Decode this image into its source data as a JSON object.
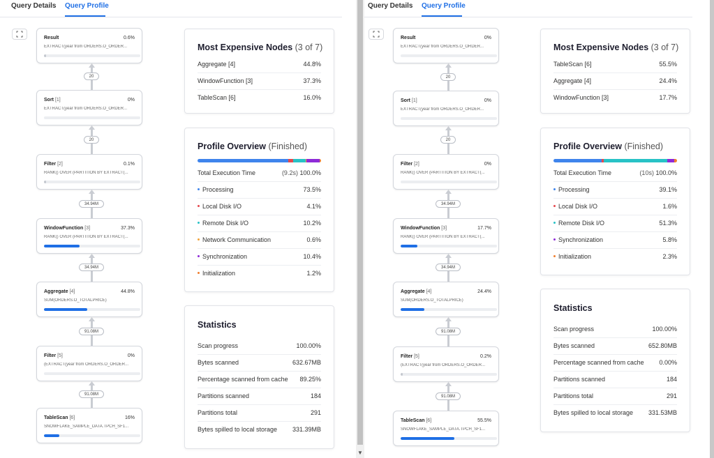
{
  "left": {
    "tabs": [
      "Query Details",
      "Query Profile"
    ],
    "nodes": [
      {
        "name": "Result",
        "id": "",
        "percent": "0.6%",
        "expr": "EXTRACT(year from ORDERS.O_ORDER...",
        "fill": 0.006
      },
      {
        "name": "Sort",
        "id": "[1]",
        "percent": "0%",
        "expr": "EXTRACT(year from ORDERS.O_ORDER...",
        "fill": 0
      },
      {
        "name": "Filter",
        "id": "[2]",
        "percent": "0.1%",
        "expr": "RANK() OVER (PARTITION BY EXTRACT(...",
        "fill": 0.001
      },
      {
        "name": "WindowFunction",
        "id": "[3]",
        "percent": "37.3%",
        "expr": "RANK() OVER (PARTITION BY EXTRACT(...",
        "fill": 0.373
      },
      {
        "name": "Aggregate",
        "id": "[4]",
        "percent": "44.8%",
        "expr": "SUM(ORDERS.O_TOTALPRICE)",
        "fill": 0.448
      },
      {
        "name": "Filter",
        "id": "[5]",
        "percent": "0%",
        "expr": "(EXTRACT(year from ORDERS.O_ORDER...",
        "fill": 0
      },
      {
        "name": "TableScan",
        "id": "[6]",
        "percent": "16%",
        "expr": "SNOWFLAKE_SAMPLE_DATA.TPCH_SF1...",
        "fill": 0.16
      }
    ],
    "edges": [
      "20",
      "20",
      "34.94M",
      "34.94M",
      "91.08M",
      "91.08M"
    ],
    "expensive": {
      "title": "Most Expensive Nodes",
      "count": "(3 of 7)",
      "rows": [
        [
          "Aggregate [4]",
          "44.8%"
        ],
        [
          "WindowFunction [3]",
          "37.3%"
        ],
        [
          "TableScan [6]",
          "16.0%"
        ]
      ]
    },
    "overview": {
      "title": "Profile Overview",
      "status": "(Finished)",
      "total_label": "Total Execution Time",
      "total_time": "(9.2s)",
      "total_pct": "100.0%",
      "rows": [
        {
          "label": "Processing",
          "value": "73.5%",
          "color": "#3f84ec"
        },
        {
          "label": "Local Disk I/O",
          "value": "4.1%",
          "color": "#e5484d"
        },
        {
          "label": "Remote Disk I/O",
          "value": "10.2%",
          "color": "#28c2c6"
        },
        {
          "label": "Network Communication",
          "value": "0.6%",
          "color": "#f2a33a"
        },
        {
          "label": "Synchronization",
          "value": "10.4%",
          "color": "#8e2bd8"
        },
        {
          "label": "Initialization",
          "value": "1.2%",
          "color": "#f07f2f"
        }
      ],
      "bar": [
        0.735,
        0.041,
        0.102,
        0.006,
        0.104,
        0.012
      ]
    },
    "stats": {
      "title": "Statistics",
      "rows": [
        [
          "Scan progress",
          "100.00%"
        ],
        [
          "Bytes scanned",
          "632.67MB"
        ],
        [
          "Percentage scanned from cache",
          "89.25%"
        ],
        [
          "Partitions scanned",
          "184"
        ],
        [
          "Partitions total",
          "291"
        ],
        [
          "Bytes spilled to local storage",
          "331.39MB"
        ]
      ]
    }
  },
  "right": {
    "tabs": [
      "Query Details",
      "Query Profile"
    ],
    "nodes": [
      {
        "name": "Result",
        "id": "",
        "percent": "0%",
        "expr": "EXTRACT(year from ORDERS.O_ORDER...",
        "fill": 0
      },
      {
        "name": "Sort",
        "id": "[1]",
        "percent": "0%",
        "expr": "EXTRACT(year from ORDERS.O_ORDER...",
        "fill": 0
      },
      {
        "name": "Filter",
        "id": "[2]",
        "percent": "0%",
        "expr": "RANK() OVER (PARTITION BY EXTRACT(...",
        "fill": 0
      },
      {
        "name": "WindowFunction",
        "id": "[3]",
        "percent": "17.7%",
        "expr": "RANK() OVER (PARTITION BY EXTRACT(...",
        "fill": 0.177
      },
      {
        "name": "Aggregate",
        "id": "[4]",
        "percent": "24.4%",
        "expr": "SUM(ORDERS.O_TOTALPRICE)",
        "fill": 0.244
      },
      {
        "name": "Filter",
        "id": "[5]",
        "percent": "0.2%",
        "expr": "(EXTRACT(year from ORDERS.O_ORDER...",
        "fill": 0.002
      },
      {
        "name": "TableScan",
        "id": "[6]",
        "percent": "55.5%",
        "expr": "SNOWFLAKE_SAMPLE_DATA.TPCH_SF1...",
        "fill": 0.555
      }
    ],
    "edges": [
      "20",
      "20",
      "34.94M",
      "34.94M",
      "91.08M",
      "91.08M"
    ],
    "expensive": {
      "title": "Most Expensive Nodes",
      "count": "(3 of 7)",
      "rows": [
        [
          "TableScan [6]",
          "55.5%"
        ],
        [
          "Aggregate [4]",
          "24.4%"
        ],
        [
          "WindowFunction [3]",
          "17.7%"
        ]
      ]
    },
    "overview": {
      "title": "Profile Overview",
      "status": "(Finished)",
      "total_label": "Total Execution Time",
      "total_time": "(10s)",
      "total_pct": "100.0%",
      "rows": [
        {
          "label": "Processing",
          "value": "39.1%",
          "color": "#3f84ec"
        },
        {
          "label": "Local Disk I/O",
          "value": "1.6%",
          "color": "#e5484d"
        },
        {
          "label": "Remote Disk I/O",
          "value": "51.3%",
          "color": "#28c2c6"
        },
        {
          "label": "Synchronization",
          "value": "5.8%",
          "color": "#8e2bd8"
        },
        {
          "label": "Initialization",
          "value": "2.3%",
          "color": "#f07f2f"
        }
      ],
      "bar": [
        0.391,
        0.016,
        0.513,
        0.058,
        0.023
      ]
    },
    "stats": {
      "title": "Statistics",
      "rows": [
        [
          "Scan progress",
          "100.00%"
        ],
        [
          "Bytes scanned",
          "652.80MB"
        ],
        [
          "Percentage scanned from cache",
          "0.00%"
        ],
        [
          "Partitions scanned",
          "184"
        ],
        [
          "Partitions total",
          "291"
        ],
        [
          "Bytes spilled to local storage",
          "331.53MB"
        ]
      ]
    }
  }
}
